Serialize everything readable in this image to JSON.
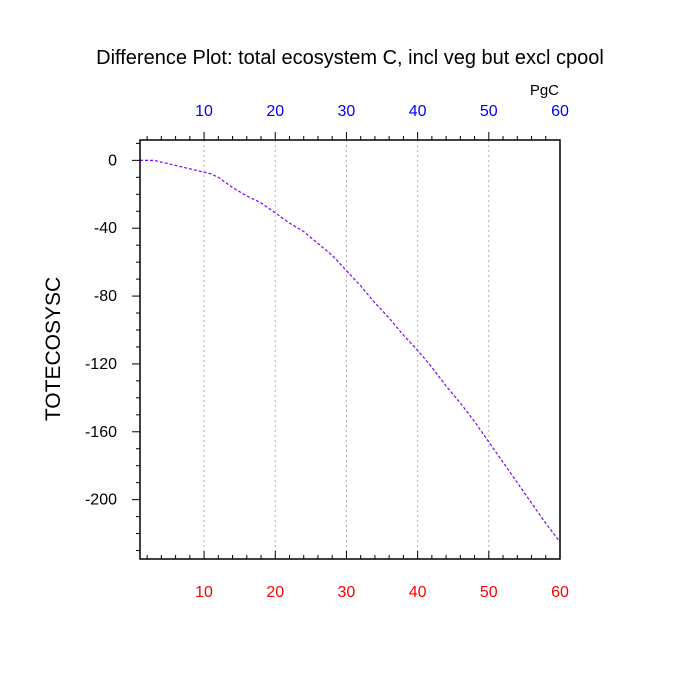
{
  "chart_data": {
    "type": "line",
    "title": "Difference Plot: total ecosystem C, incl veg but excl cpool",
    "ylabel": "TOTECOSYSC",
    "units": "PgC",
    "xlim": [
      1,
      60
    ],
    "ylim": [
      -235,
      12
    ],
    "x_ticks": [
      10,
      20,
      30,
      40,
      50,
      60
    ],
    "y_ticks": [
      0,
      -40,
      -80,
      -120,
      -160,
      -200
    ],
    "x_tick_color_bottom": "#ff0000",
    "x_tick_color_top": "#0000ff",
    "line_color": "#8000ff",
    "line_style": "dashed",
    "grid": "vertical dotted at major x ticks",
    "x": [
      1,
      2,
      3,
      4,
      5,
      6,
      8,
      10,
      11,
      12,
      14,
      16,
      18,
      20,
      22,
      24,
      26,
      28,
      30,
      32,
      34,
      36,
      38,
      40,
      42,
      44,
      46,
      48,
      50,
      52,
      54,
      56,
      58,
      60
    ],
    "y": [
      0,
      0,
      0,
      -1,
      -2,
      -3,
      -5,
      -7,
      -8,
      -10,
      -16,
      -21,
      -25,
      -31,
      -37,
      -42,
      -49,
      -56,
      -65,
      -74,
      -84,
      -93,
      -103,
      -112,
      -122,
      -133,
      -143,
      -154,
      -166,
      -178,
      -190,
      -202,
      -214,
      -225
    ]
  }
}
